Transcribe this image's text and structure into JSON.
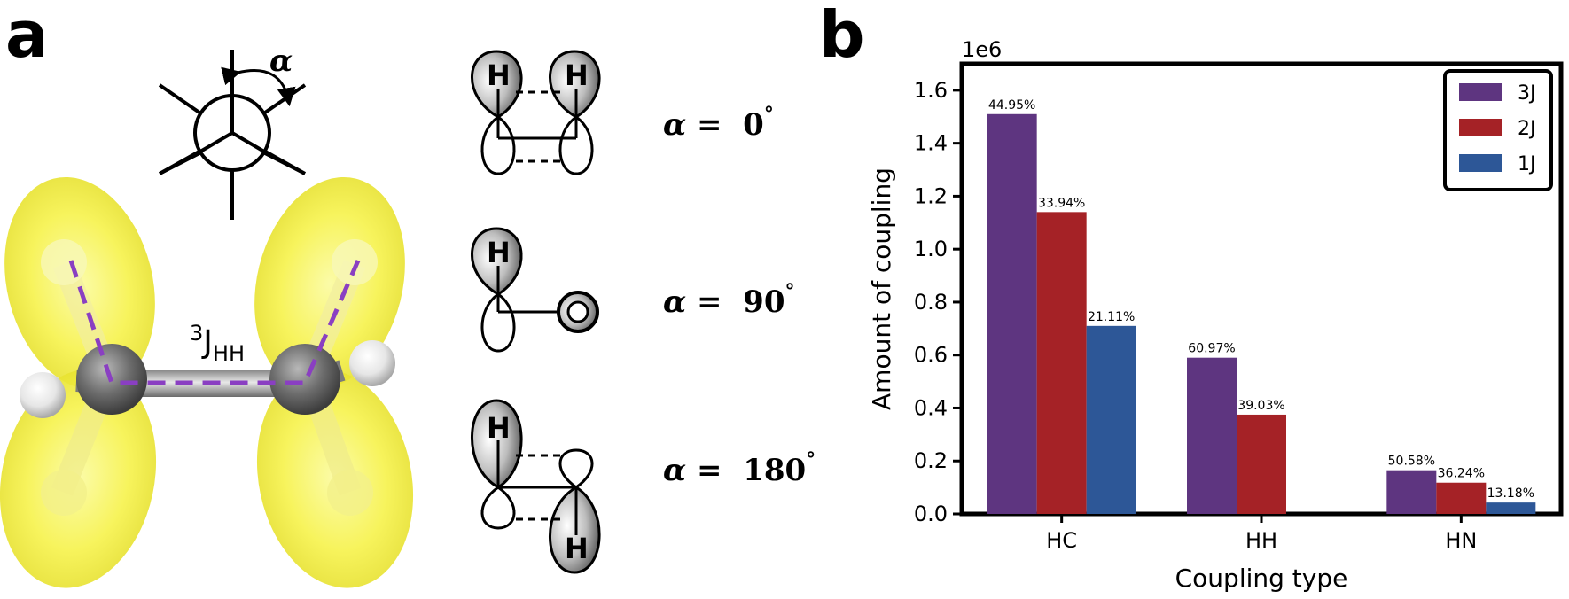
{
  "panel_a": {
    "label": "a",
    "newman_angle_symbol": "α",
    "coupling_label": {
      "superscript": "3",
      "main": "J",
      "subscript": "HH"
    },
    "orbital_atom_label": "H",
    "conformers": [
      {
        "symbol": "α",
        "eq": " =  ",
        "value": "0",
        "degree": "°"
      },
      {
        "symbol": "α",
        "eq": " =  ",
        "value": "90",
        "degree": "°"
      },
      {
        "symbol": "α",
        "eq": " =  ",
        "value": "180",
        "degree": "°"
      }
    ]
  },
  "panel_b": {
    "label": "b"
  },
  "chart_data": {
    "type": "bar",
    "title": "",
    "xlabel": "Coupling type",
    "ylabel": "Amount of coupling",
    "scale_label": "1e6",
    "categories": [
      "HC",
      "HH",
      "HN"
    ],
    "ylim": [
      0,
      1.7
    ],
    "yticks": [
      0.0,
      0.2,
      0.4,
      0.6,
      0.8,
      1.0,
      1.2,
      1.4,
      1.6
    ],
    "ytick_labels": [
      "0.0",
      "0.2",
      "0.4",
      "0.6",
      "0.8",
      "1.0",
      "1.2",
      "1.4",
      "1.6"
    ],
    "grid": false,
    "legend_position": "top-right",
    "series": [
      {
        "name": "3J",
        "color": "#5e3580",
        "values": [
          1.51,
          0.59,
          0.165
        ],
        "labels": [
          "44.95%",
          "60.97%",
          "50.58%"
        ]
      },
      {
        "name": "2J",
        "color": "#a52226",
        "values": [
          1.14,
          0.375,
          0.118
        ],
        "labels": [
          "33.94%",
          "39.03%",
          "36.24%"
        ]
      },
      {
        "name": "1J",
        "color": "#2d5797",
        "values": [
          0.71,
          0,
          0.043
        ],
        "labels": [
          "21.11%",
          "",
          "13.18%"
        ]
      }
    ]
  }
}
